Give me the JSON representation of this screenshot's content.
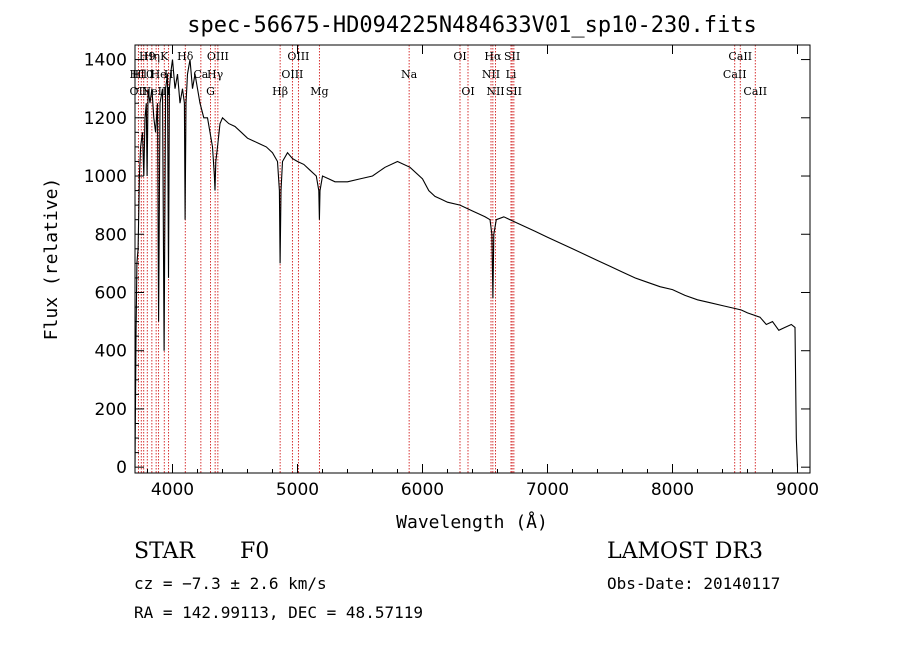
{
  "chart_data": {
    "type": "line",
    "title": "spec-56675-HD094225N484633V01_sp10-230.fits",
    "xlabel": "Wavelength (Å)",
    "ylabel": "Flux (relative)",
    "xlim": [
      3700,
      9100
    ],
    "ylim": [
      -20,
      1450
    ],
    "xticks": [
      4000,
      5000,
      6000,
      7000,
      8000,
      9000
    ],
    "yticks": [
      0,
      200,
      400,
      600,
      800,
      1000,
      1200,
      1400
    ],
    "series": [
      {
        "name": "spectrum",
        "x": [
          3700,
          3708,
          3715,
          3725,
          3735,
          3745,
          3760,
          3770,
          3780,
          3790,
          3797,
          3805,
          3820,
          3835,
          3850,
          3865,
          3880,
          3889,
          3900,
          3920,
          3933,
          3945,
          3960,
          3968,
          3975,
          3985,
          4000,
          4020,
          4040,
          4060,
          4080,
          4095,
          4101,
          4108,
          4120,
          4140,
          4160,
          4180,
          4200,
          4220,
          4250,
          4280,
          4300,
          4320,
          4335,
          4340,
          4346,
          4360,
          4380,
          4400,
          4450,
          4500,
          4550,
          4600,
          4650,
          4700,
          4750,
          4800,
          4840,
          4855,
          4861,
          4868,
          4880,
          4920,
          4960,
          5000,
          5050,
          5100,
          5150,
          5170,
          5175,
          5180,
          5200,
          5250,
          5300,
          5400,
          5500,
          5600,
          5700,
          5800,
          5900,
          6000,
          6050,
          6100,
          6150,
          6200,
          6300,
          6400,
          6450,
          6500,
          6540,
          6555,
          6563,
          6570,
          6590,
          6650,
          6700,
          6800,
          6900,
          7000,
          7100,
          7200,
          7300,
          7400,
          7500,
          7600,
          7700,
          7800,
          7900,
          8000,
          8100,
          8200,
          8300,
          8400,
          8500,
          8550,
          8600,
          8700,
          8750,
          8800,
          8850,
          8900,
          8950,
          8980,
          8990,
          9000
        ],
        "y": [
          0,
          450,
          700,
          750,
          1000,
          1100,
          1150,
          1000,
          1200,
          1250,
          1000,
          1300,
          1250,
          1300,
          1200,
          1150,
          1250,
          500,
          1250,
          1300,
          400,
          1300,
          1350,
          650,
          1300,
          1350,
          1400,
          1300,
          1350,
          1250,
          1300,
          1250,
          850,
          1250,
          1350,
          1400,
          1300,
          1350,
          1300,
          1250,
          1200,
          1200,
          1150,
          1100,
          1000,
          950,
          1050,
          1100,
          1180,
          1200,
          1180,
          1170,
          1150,
          1130,
          1120,
          1110,
          1100,
          1080,
          1050,
          950,
          700,
          950,
          1050,
          1080,
          1060,
          1050,
          1040,
          1020,
          1000,
          950,
          850,
          950,
          1000,
          990,
          980,
          980,
          990,
          1000,
          1030,
          1050,
          1030,
          990,
          950,
          930,
          920,
          910,
          900,
          880,
          870,
          860,
          850,
          800,
          580,
          800,
          850,
          860,
          850,
          830,
          810,
          790,
          770,
          750,
          730,
          710,
          690,
          670,
          650,
          635,
          620,
          610,
          590,
          575,
          565,
          555,
          545,
          540,
          530,
          515,
          490,
          500,
          470,
          480,
          490,
          480,
          100,
          0
        ]
      }
    ],
    "spectral_lines": [
      {
        "wl": 3727,
        "label": "OII",
        "row": 2
      },
      {
        "wl": 3750,
        "label": "H10",
        "row": 1
      },
      {
        "wl": 3770,
        "label": "H11",
        "row": 1
      },
      {
        "wl": 3798,
        "label": "H9",
        "row": 0
      },
      {
        "wl": 3835,
        "label": "Hη",
        "row": 0
      },
      {
        "wl": 3869,
        "label": "NeIII",
        "row": 2
      },
      {
        "wl": 3889,
        "label": "He",
        "row": 1
      },
      {
        "wl": 3934,
        "label": "K",
        "row": 0
      },
      {
        "wl": 3969,
        "label": "H",
        "row": 1
      },
      {
        "wl": 4102,
        "label": "Hδ",
        "row": 0
      },
      {
        "wl": 4227,
        "label": "Ca",
        "row": 1
      },
      {
        "wl": 4304,
        "label": "G",
        "row": 2
      },
      {
        "wl": 4341,
        "label": "Hγ",
        "row": 1
      },
      {
        "wl": 4363,
        "label": "OIII",
        "row": 0
      },
      {
        "wl": 4861,
        "label": "Hβ",
        "row": 2
      },
      {
        "wl": 4959,
        "label": "OIII",
        "row": 1
      },
      {
        "wl": 5007,
        "label": "OIII",
        "row": 0
      },
      {
        "wl": 5175,
        "label": "Mg",
        "row": 2
      },
      {
        "wl": 5893,
        "label": "Na",
        "row": 1
      },
      {
        "wl": 6300,
        "label": "OI",
        "row": 0
      },
      {
        "wl": 6364,
        "label": "OI",
        "row": 2
      },
      {
        "wl": 6548,
        "label": "NII",
        "row": 1
      },
      {
        "wl": 6563,
        "label": "Hα",
        "row": 0
      },
      {
        "wl": 6584,
        "label": "NII",
        "row": 2
      },
      {
        "wl": 6708,
        "label": "Li",
        "row": 1
      },
      {
        "wl": 6717,
        "label": "SII",
        "row": 0
      },
      {
        "wl": 6731,
        "label": "SII",
        "row": 2
      },
      {
        "wl": 8498,
        "label": "CaII",
        "row": 1
      },
      {
        "wl": 8542,
        "label": "CaII",
        "row": 0
      },
      {
        "wl": 8662,
        "label": "CaII",
        "row": 2
      }
    ]
  },
  "info": {
    "object_type": "STAR",
    "subclass": "F0",
    "cz": "cz = −7.3 ± 2.6 km/s",
    "coords": "RA = 142.99113, DEC =  48.57119",
    "survey": "LAMOST DR3",
    "obs_date": "Obs-Date: 20140117"
  },
  "colors": {
    "spectrum": "#000000",
    "line_markers": "#cc0000"
  }
}
